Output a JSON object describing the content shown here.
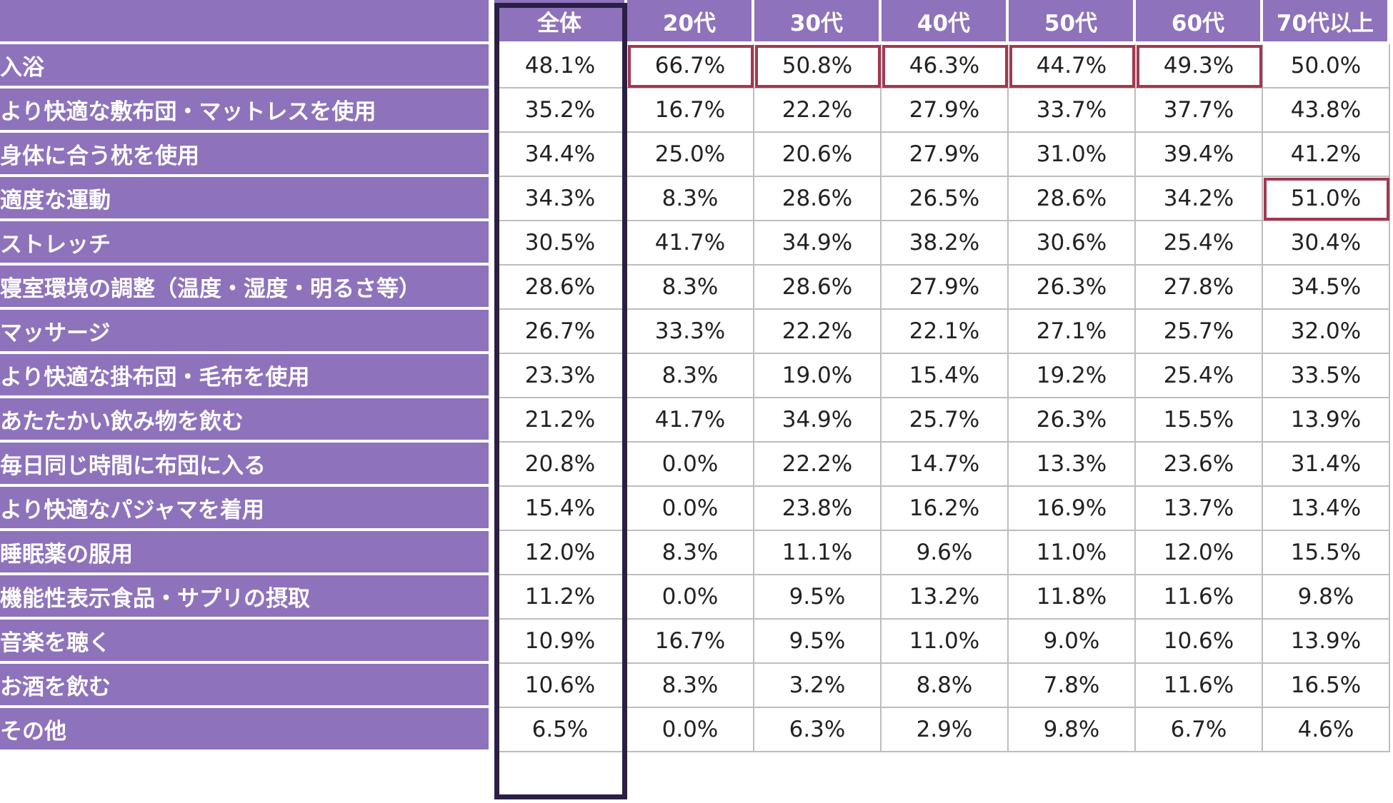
{
  "chart_data": {
    "type": "table",
    "columns": [
      "全体",
      "20代",
      "30代",
      "40代",
      "50代",
      "60代",
      "70代以上"
    ],
    "rows": [
      {
        "label": "入浴",
        "values": [
          "48.1%",
          "66.7%",
          "50.8%",
          "46.3%",
          "44.7%",
          "49.3%",
          "50.0%"
        ]
      },
      {
        "label": "より快適な敷布団・マットレスを使用",
        "values": [
          "35.2%",
          "16.7%",
          "22.2%",
          "27.9%",
          "33.7%",
          "37.7%",
          "43.8%"
        ]
      },
      {
        "label": "身体に合う枕を使用",
        "values": [
          "34.4%",
          "25.0%",
          "20.6%",
          "27.9%",
          "31.0%",
          "39.4%",
          "41.2%"
        ]
      },
      {
        "label": "適度な運動",
        "values": [
          "34.3%",
          "8.3%",
          "28.6%",
          "26.5%",
          "28.6%",
          "34.2%",
          "51.0%"
        ]
      },
      {
        "label": "ストレッチ",
        "values": [
          "30.5%",
          "41.7%",
          "34.9%",
          "38.2%",
          "30.6%",
          "25.4%",
          "30.4%"
        ]
      },
      {
        "label": "寝室環境の調整（温度・湿度・明るさ等）",
        "values": [
          "28.6%",
          "8.3%",
          "28.6%",
          "27.9%",
          "26.3%",
          "27.8%",
          "34.5%"
        ]
      },
      {
        "label": "マッサージ",
        "values": [
          "26.7%",
          "33.3%",
          "22.2%",
          "22.1%",
          "27.1%",
          "25.7%",
          "32.0%"
        ]
      },
      {
        "label": "より快適な掛布団・毛布を使用",
        "values": [
          "23.3%",
          "8.3%",
          "19.0%",
          "15.4%",
          "19.2%",
          "25.4%",
          "33.5%"
        ]
      },
      {
        "label": "あたたかい飲み物を飲む",
        "values": [
          "21.2%",
          "41.7%",
          "34.9%",
          "25.7%",
          "26.3%",
          "15.5%",
          "13.9%"
        ]
      },
      {
        "label": "毎日同じ時間に布団に入る",
        "values": [
          "20.8%",
          "0.0%",
          "22.2%",
          "14.7%",
          "13.3%",
          "23.6%",
          "31.4%"
        ]
      },
      {
        "label": "より快適なパジャマを着用",
        "values": [
          "15.4%",
          "0.0%",
          "23.8%",
          "16.2%",
          "16.9%",
          "13.7%",
          "13.4%"
        ]
      },
      {
        "label": "睡眠薬の服用",
        "values": [
          "12.0%",
          "8.3%",
          "11.1%",
          "9.6%",
          "11.0%",
          "12.0%",
          "15.5%"
        ]
      },
      {
        "label": "機能性表示食品・サプリの摂取",
        "values": [
          "11.2%",
          "0.0%",
          "9.5%",
          "13.2%",
          "11.8%",
          "11.6%",
          "9.8%"
        ]
      },
      {
        "label": "音楽を聴く",
        "values": [
          "10.9%",
          "16.7%",
          "9.5%",
          "11.0%",
          "9.0%",
          "10.6%",
          "13.9%"
        ]
      },
      {
        "label": "お酒を飲む",
        "values": [
          "10.6%",
          "8.3%",
          "3.2%",
          "8.8%",
          "7.8%",
          "11.6%",
          "16.5%"
        ]
      },
      {
        "label": "その他",
        "values": [
          "6.5%",
          "0.0%",
          "6.3%",
          "2.9%",
          "9.8%",
          "6.7%",
          "4.6%"
        ]
      }
    ],
    "highlights": [
      [
        0,
        1
      ],
      [
        0,
        2
      ],
      [
        0,
        3
      ],
      [
        0,
        4
      ],
      [
        0,
        5
      ],
      [
        3,
        6
      ]
    ],
    "highlight_color": "#a3384f",
    "header_color": "#8e72bc",
    "total_column_border_color": "#2c1f45"
  }
}
